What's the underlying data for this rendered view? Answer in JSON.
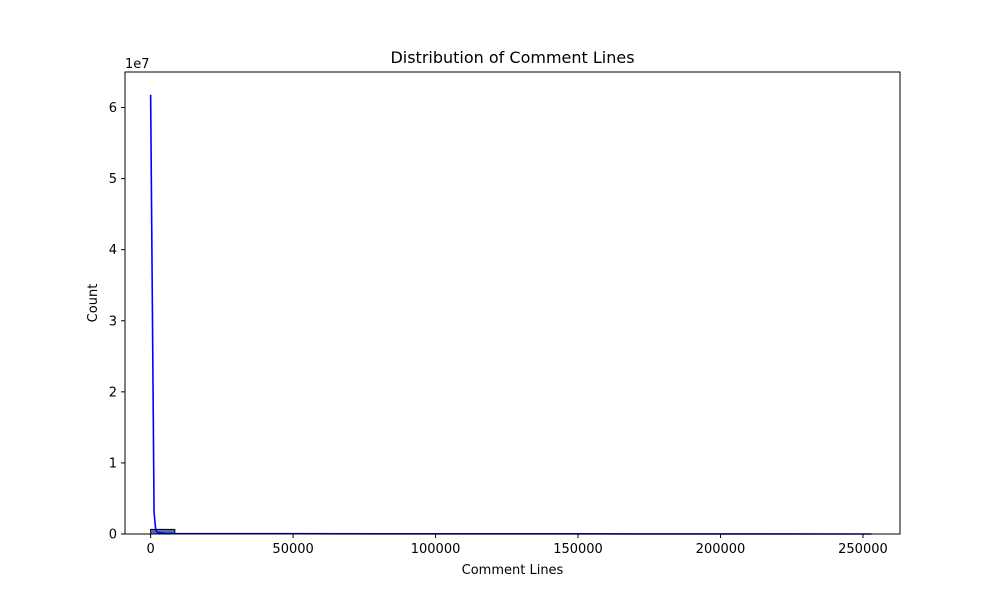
{
  "chart_data": {
    "type": "bar",
    "title": "Distribution of Comment Lines",
    "xlabel": "Comment Lines",
    "ylabel": "Count",
    "y_offset_label": "1e7",
    "y_multiplier": 10000000,
    "xlim": [
      -9000,
      263000
    ],
    "ylim": [
      0,
      6.5
    ],
    "x_ticks": [
      0,
      50000,
      100000,
      150000,
      200000,
      250000
    ],
    "x_tick_labels": [
      "0",
      "50000",
      "100000",
      "150000",
      "200000",
      "250000"
    ],
    "y_ticks": [
      0,
      1,
      2,
      3,
      4,
      5,
      6
    ],
    "y_tick_labels": [
      "0",
      "1",
      "2",
      "3",
      "4",
      "5",
      "6"
    ],
    "histogram": {
      "bin_edges": [
        0,
        8500,
        17000,
        25500,
        34000,
        42500,
        51000,
        59500,
        68000,
        76500,
        85000,
        93500,
        102000,
        110500,
        119000,
        127500,
        136000,
        144500,
        153000,
        161500,
        170000,
        178500,
        187000,
        195500,
        204000,
        212500,
        221000,
        229500,
        238000,
        246500,
        255000
      ],
      "counts_scaled": [
        0.065,
        0.0,
        0.0,
        0.0,
        0.0,
        0.0,
        0.0,
        0.0,
        0.0,
        0.0,
        0.0,
        0.0,
        0.0,
        0.0,
        0.0,
        0.0,
        0.0,
        0.0,
        0.0,
        0.0,
        0.0,
        0.0,
        0.0,
        0.0,
        0.0,
        0.0,
        0.0,
        0.0,
        0.0,
        0.0
      ],
      "fill_color": "#4c72b0",
      "edge_color": "#000000"
    },
    "kde": {
      "x": [
        0,
        1200,
        1800,
        2500,
        5000,
        10000,
        50000,
        100000,
        150000,
        200000,
        253000
      ],
      "y_scaled": [
        6.18,
        0.3,
        0.05,
        0.02,
        0.01,
        0.005,
        0.004,
        0.003,
        0.002,
        0.001,
        0.0
      ],
      "color": "#0000ff"
    },
    "grid": false,
    "legend": "none"
  }
}
